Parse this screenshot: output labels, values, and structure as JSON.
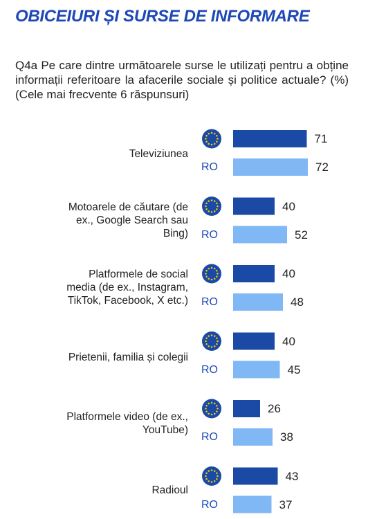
{
  "header": {
    "title": "OBICEIURI ȘI SURSE DE INFORMARE",
    "question": "Q4a Pe care dintre următoarele surse le utilizați pentru a obține informații referitoare la afacerile sociale și politice actuale? (%) (Cele mai frecvente 6 răspunsuri)"
  },
  "colors": {
    "eu": "#1b4aa6",
    "ro": "#80b8f5",
    "title": "#1e48b8",
    "ro_label": "#1e48b8",
    "eu_star": "#f5cc00"
  },
  "chart_data": {
    "type": "bar",
    "orientation": "horizontal",
    "categories": [
      "Televiziunea",
      "Motoarele de căutare (de ex., Google Search sau Bing)",
      "Platformele de social media (de ex., Instagram, TikTok, Facebook, X etc.)",
      "Prietenii, familia și colegii",
      "Platformele video (de ex., YouTube)",
      "Radioul"
    ],
    "series": [
      {
        "icon": "eu-flag-icon",
        "values": [
          71,
          40,
          40,
          40,
          26,
          43
        ]
      },
      {
        "name": "RO",
        "values": [
          72,
          52,
          48,
          45,
          38,
          37
        ]
      }
    ],
    "xlim": [
      0,
      100
    ]
  }
}
